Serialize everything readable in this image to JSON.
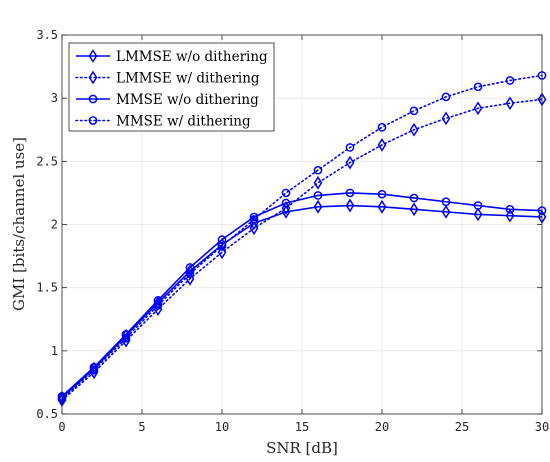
{
  "chart_data": {
    "type": "line",
    "xlabel": "SNR [dB]",
    "ylabel": "GMI [bits/channel use]",
    "xlim": [
      0,
      30
    ],
    "ylim": [
      0.5,
      3.5
    ],
    "xticks": [
      0,
      5,
      10,
      15,
      20,
      25,
      30
    ],
    "yticks": [
      0.5,
      1,
      1.5,
      2,
      2.5,
      3,
      3.5
    ],
    "xtick_labels": [
      "0",
      "5",
      "10",
      "15",
      "20",
      "25",
      "30"
    ],
    "ytick_labels": [
      "0.5",
      "1",
      "1.5",
      "2",
      "2.5",
      "3",
      "3.5"
    ],
    "grid": true,
    "legend_position": "top-left",
    "line_color": "#0000ff",
    "x": [
      0,
      2,
      4,
      6,
      8,
      10,
      12,
      14,
      16,
      18,
      20,
      22,
      24,
      26,
      28,
      30
    ],
    "series": [
      {
        "name": "LMMSE w/o dithering",
        "line_style": "solid",
        "marker": "diamond",
        "values": [
          0.63,
          0.86,
          1.12,
          1.38,
          1.63,
          1.84,
          2.01,
          2.1,
          2.14,
          2.15,
          2.14,
          2.12,
          2.1,
          2.08,
          2.07,
          2.06
        ]
      },
      {
        "name": "LMMSE w/ dithering",
        "line_style": "dotted",
        "marker": "diamond",
        "values": [
          0.61,
          0.83,
          1.08,
          1.33,
          1.57,
          1.78,
          1.97,
          2.13,
          2.33,
          2.49,
          2.63,
          2.75,
          2.84,
          2.92,
          2.96,
          2.99
        ]
      },
      {
        "name": "MMSE w/o dithering",
        "line_style": "solid",
        "marker": "circle",
        "values": [
          0.64,
          0.87,
          1.13,
          1.4,
          1.66,
          1.88,
          2.06,
          2.17,
          2.23,
          2.25,
          2.24,
          2.21,
          2.18,
          2.15,
          2.12,
          2.11
        ]
      },
      {
        "name": "MMSE w/ dithering",
        "line_style": "dotted",
        "marker": "circle",
        "values": [
          0.62,
          0.85,
          1.1,
          1.36,
          1.61,
          1.83,
          2.04,
          2.25,
          2.43,
          2.61,
          2.77,
          2.9,
          3.01,
          3.09,
          3.14,
          3.18
        ]
      }
    ]
  }
}
